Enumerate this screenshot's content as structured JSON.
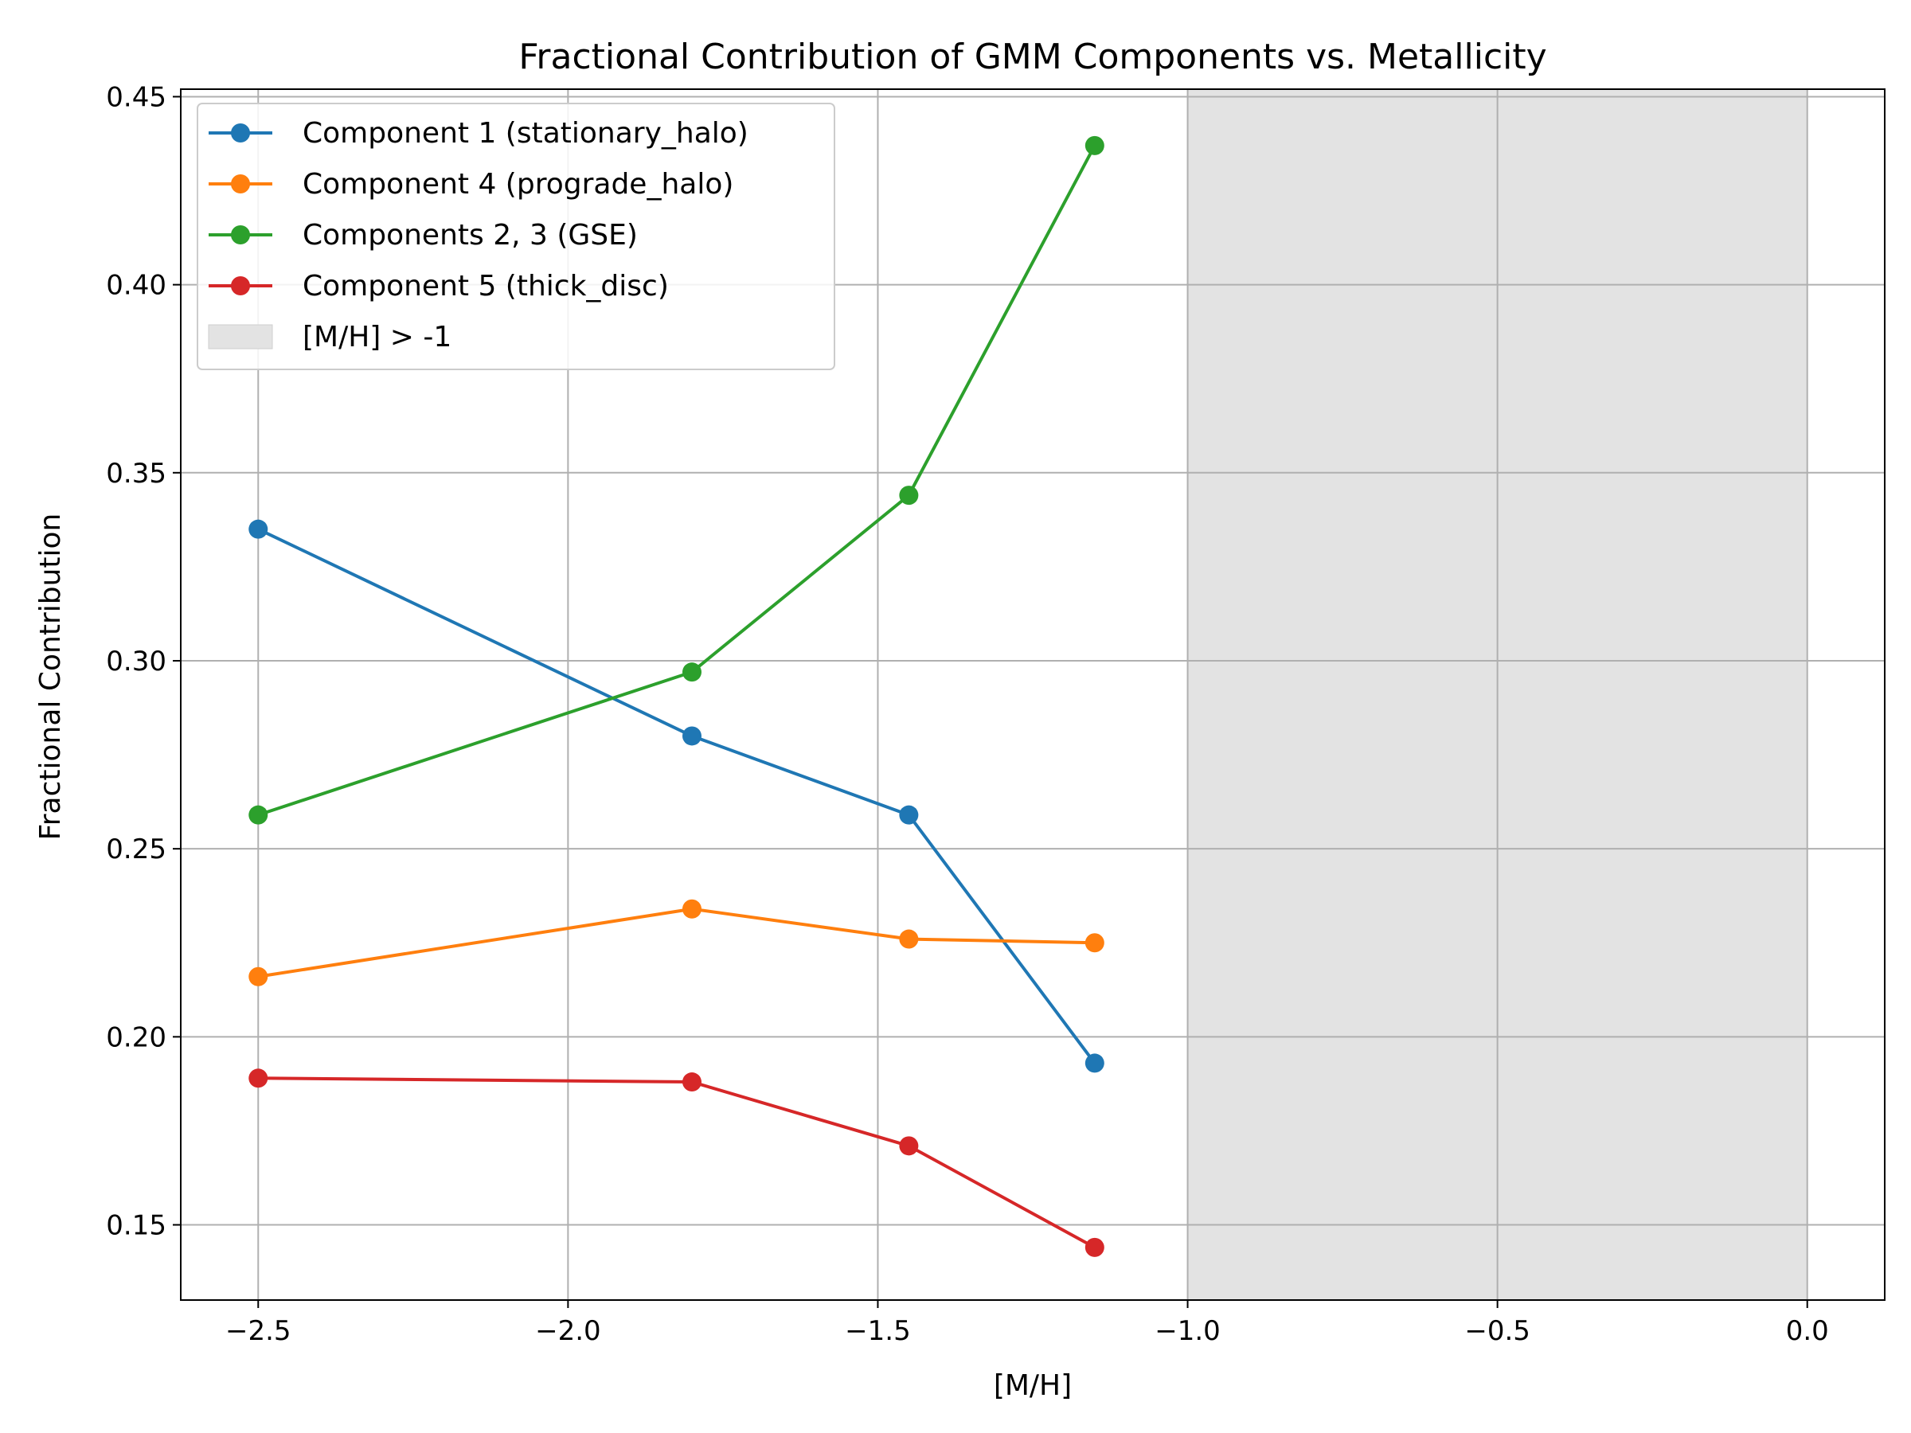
{
  "chart_data": {
    "type": "line",
    "title": "Fractional Contribution of GMM Components vs. Metallicity",
    "xlabel": "[M/H]",
    "ylabel": "Fractional Contribution",
    "xlim": [
      -2.625,
      0.125
    ],
    "ylim": [
      0.13,
      0.452
    ],
    "xticks": [
      -2.5,
      -2.0,
      -1.5,
      -1.0,
      -0.5,
      0.0
    ],
    "xtick_labels": [
      "−2.5",
      "−2.0",
      "−1.5",
      "−1.0",
      "−0.5",
      "0.0"
    ],
    "yticks": [
      0.15,
      0.2,
      0.25,
      0.3,
      0.35,
      0.4,
      0.45
    ],
    "ytick_labels": [
      "0.15",
      "0.20",
      "0.25",
      "0.30",
      "0.35",
      "0.40",
      "0.45"
    ],
    "grid": true,
    "legend_position": "top-left",
    "shaded_region": {
      "x_range": [
        -1.0,
        0.0
      ],
      "label": "[M/H] > -1",
      "color": "#e3e3e3"
    },
    "x": [
      -2.5,
      -1.8,
      -1.45,
      -1.15
    ],
    "series": [
      {
        "name": "Component 1 (stationary_halo)",
        "color": "#1f77b4",
        "values": [
          0.335,
          0.28,
          0.259,
          0.193
        ]
      },
      {
        "name": "Component 4 (prograde_halo)",
        "color": "#ff7f0e",
        "values": [
          0.216,
          0.234,
          0.226,
          0.225
        ]
      },
      {
        "name": "Components 2, 3 (GSE)",
        "color": "#2ca02c",
        "values": [
          0.259,
          0.297,
          0.344,
          0.437
        ]
      },
      {
        "name": "Component 5 (thick_disc)",
        "color": "#d62728",
        "values": [
          0.189,
          0.188,
          0.171,
          0.144
        ]
      }
    ]
  }
}
